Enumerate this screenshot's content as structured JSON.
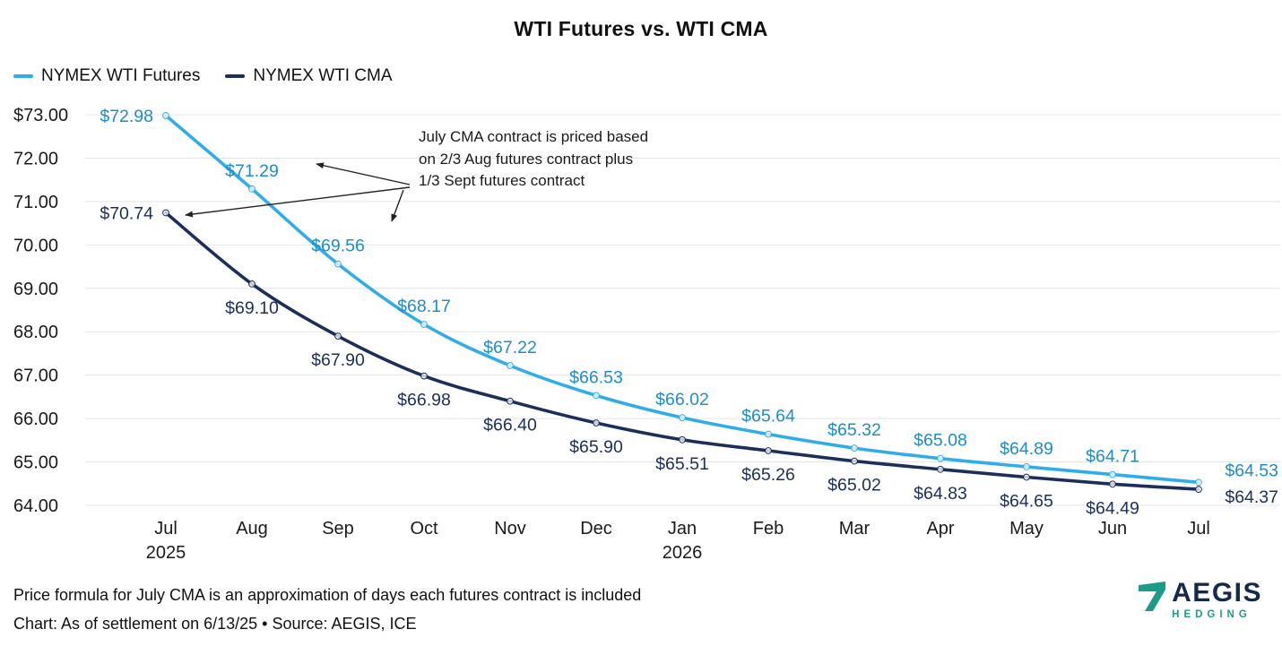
{
  "title": "WTI Futures vs. WTI CMA",
  "annotation": {
    "lines": [
      "July CMA contract is priced based",
      "on 2/3 Aug futures contract plus",
      "1/3 Sept futures contract"
    ]
  },
  "footer": {
    "line1": "Price formula for July CMA is an approximation of days each futures contract is included",
    "line2": "Chart: As of settlement on 6/13/25 • Source: AEGIS, ICE"
  },
  "logo": {
    "word": "AEGIS",
    "sub": "HEDGING",
    "mark_color": "#1d9b8a",
    "word_color": "#14294b"
  },
  "chart_data": {
    "type": "line",
    "title": "WTI Futures vs. WTI CMA",
    "categories": [
      "Jul\n2025",
      "Aug",
      "Sep",
      "Oct",
      "Nov",
      "Dec",
      "Jan\n2026",
      "Feb",
      "Mar",
      "Apr",
      "May",
      "Jun",
      "Jul"
    ],
    "series": [
      {
        "name": "NYMEX WTI Futures",
        "color": "#2fadea",
        "label_color": "#1e8ccb",
        "values": [
          72.98,
          71.29,
          69.56,
          68.17,
          67.22,
          66.53,
          66.02,
          65.64,
          65.32,
          65.08,
          64.89,
          64.71,
          64.53
        ]
      },
      {
        "name": "NYMEX WTI CMA",
        "color": "#1c2f5a",
        "label_color": "#1c2f5a",
        "values": [
          70.74,
          69.1,
          67.9,
          66.98,
          66.4,
          65.9,
          65.51,
          65.26,
          65.02,
          64.83,
          64.65,
          64.49,
          64.37
        ]
      }
    ],
    "y_ticks": [
      "$73.00",
      "72.00",
      "71.00",
      "70.00",
      "69.00",
      "68.00",
      "67.00",
      "66.00",
      "65.00",
      "64.00"
    ],
    "ylim": [
      64,
      73
    ],
    "grid": true,
    "legend_position": "top-left",
    "value_label_format": "$0.00"
  }
}
